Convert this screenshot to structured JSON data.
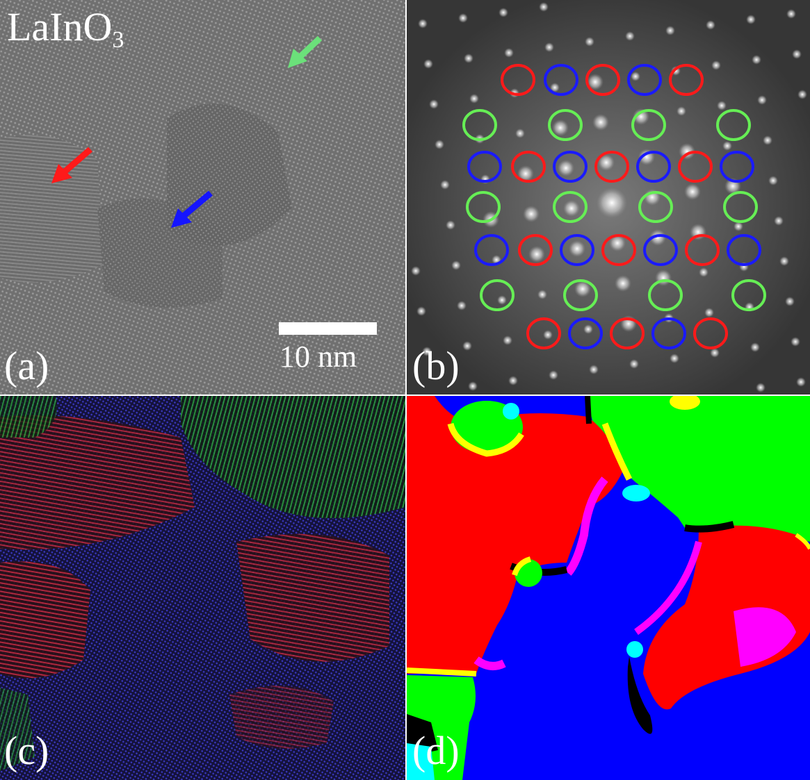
{
  "figure": {
    "panel_a": {
      "label": "(a)",
      "title_main": "LaInO",
      "title_sub": "3",
      "scale_bar_text": "10 nm",
      "arrow_colors": {
        "green": "#6be07a",
        "red": "#ff1a1a",
        "blue": "#1515ff"
      }
    },
    "panel_b": {
      "label": "(b)",
      "ring_colors": {
        "red": "#ff1a1a",
        "blue": "#1a1aff",
        "green": "#66ee55"
      }
    },
    "panel_c": {
      "label": "(c)"
    },
    "panel_d": {
      "label": "(d)",
      "region_colors": {
        "red": "#ff0000",
        "green": "#00ff00",
        "blue": "#0000ff",
        "yellow": "#ffff00",
        "magenta": "#ff00ff",
        "cyan": "#00ffff",
        "black": "#000000"
      }
    }
  }
}
